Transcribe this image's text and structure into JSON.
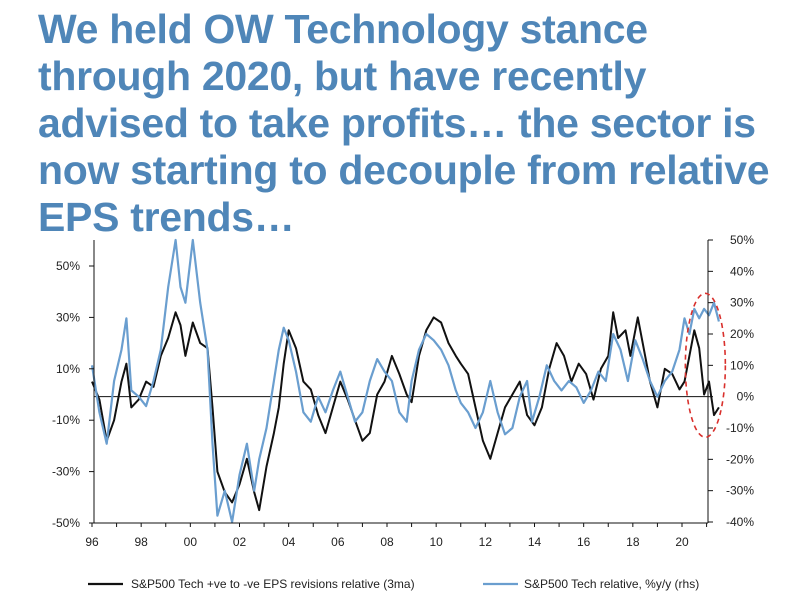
{
  "title": "We held OW Technology stance through 2020, but have recently advised to take profits… the sector is now starting to decouple from relative EPS trends…",
  "chart_data": {
    "type": "line",
    "x_ticks": [
      "96",
      "98",
      "00",
      "02",
      "04",
      "06",
      "08",
      "10",
      "12",
      "14",
      "16",
      "18",
      "20"
    ],
    "x_range": [
      1995.9,
      2021.6
    ],
    "y_left": {
      "range": [
        -50,
        60
      ],
      "ticks": [
        50,
        30,
        10,
        -10,
        -30,
        -50
      ],
      "tick_labels": [
        "50%",
        "30%",
        "10%",
        "-10%",
        "-30%",
        "-50%"
      ]
    },
    "y_right": {
      "range": [
        -40,
        50
      ],
      "ticks": [
        50,
        40,
        30,
        20,
        10,
        0,
        -10,
        -20,
        -30,
        -40
      ],
      "tick_labels": [
        "50%",
        "40%",
        "30%",
        "20%",
        "10%",
        "0%",
        "-10%",
        "-20%",
        "-30%",
        "-40%"
      ]
    },
    "zero_line": true,
    "series": [
      {
        "name": "S&P500 Tech +ve to -ve EPS revisions relative (3ma)",
        "axis": "left",
        "color": "#111111",
        "points": [
          [
            1996.0,
            5
          ],
          [
            1996.3,
            -2
          ],
          [
            1996.6,
            -18
          ],
          [
            1996.9,
            -10
          ],
          [
            1997.2,
            5
          ],
          [
            1997.4,
            12
          ],
          [
            1997.6,
            -5
          ],
          [
            1997.9,
            -2
          ],
          [
            1998.2,
            5
          ],
          [
            1998.5,
            3
          ],
          [
            1998.8,
            15
          ],
          [
            1999.1,
            22
          ],
          [
            1999.4,
            32
          ],
          [
            1999.6,
            27
          ],
          [
            1999.8,
            15
          ],
          [
            2000.1,
            28
          ],
          [
            2000.4,
            20
          ],
          [
            2000.7,
            18
          ],
          [
            2000.9,
            -5
          ],
          [
            2001.1,
            -30
          ],
          [
            2001.4,
            -38
          ],
          [
            2001.7,
            -42
          ],
          [
            2002.0,
            -35
          ],
          [
            2002.3,
            -25
          ],
          [
            2002.6,
            -38
          ],
          [
            2002.8,
            -45
          ],
          [
            2003.1,
            -28
          ],
          [
            2003.4,
            -15
          ],
          [
            2003.6,
            -5
          ],
          [
            2003.8,
            12
          ],
          [
            2004.0,
            25
          ],
          [
            2004.3,
            18
          ],
          [
            2004.6,
            5
          ],
          [
            2004.9,
            2
          ],
          [
            2005.2,
            -8
          ],
          [
            2005.5,
            -15
          ],
          [
            2005.8,
            -5
          ],
          [
            2006.1,
            5
          ],
          [
            2006.4,
            -2
          ],
          [
            2006.7,
            -10
          ],
          [
            2007.0,
            -18
          ],
          [
            2007.3,
            -15
          ],
          [
            2007.6,
            0
          ],
          [
            2007.9,
            5
          ],
          [
            2008.2,
            15
          ],
          [
            2008.5,
            8
          ],
          [
            2008.8,
            0
          ],
          [
            2009.0,
            -3
          ],
          [
            2009.3,
            15
          ],
          [
            2009.6,
            25
          ],
          [
            2009.9,
            30
          ],
          [
            2010.2,
            28
          ],
          [
            2010.5,
            20
          ],
          [
            2010.8,
            15
          ],
          [
            2011.0,
            12
          ],
          [
            2011.3,
            8
          ],
          [
            2011.6,
            -5
          ],
          [
            2011.9,
            -18
          ],
          [
            2012.2,
            -25
          ],
          [
            2012.5,
            -15
          ],
          [
            2012.8,
            -5
          ],
          [
            2013.1,
            0
          ],
          [
            2013.4,
            5
          ],
          [
            2013.7,
            -8
          ],
          [
            2014.0,
            -12
          ],
          [
            2014.3,
            -5
          ],
          [
            2014.6,
            10
          ],
          [
            2014.9,
            20
          ],
          [
            2015.2,
            15
          ],
          [
            2015.5,
            5
          ],
          [
            2015.8,
            12
          ],
          [
            2016.1,
            8
          ],
          [
            2016.4,
            -2
          ],
          [
            2016.7,
            10
          ],
          [
            2017.0,
            15
          ],
          [
            2017.2,
            32
          ],
          [
            2017.4,
            22
          ],
          [
            2017.7,
            25
          ],
          [
            2017.9,
            15
          ],
          [
            2018.2,
            30
          ],
          [
            2018.4,
            20
          ],
          [
            2018.7,
            5
          ],
          [
            2019.0,
            -5
          ],
          [
            2019.3,
            10
          ],
          [
            2019.6,
            8
          ],
          [
            2019.9,
            2
          ],
          [
            2020.1,
            5
          ],
          [
            2020.3,
            15
          ],
          [
            2020.5,
            25
          ],
          [
            2020.7,
            18
          ],
          [
            2020.9,
            0
          ],
          [
            2021.1,
            5
          ],
          [
            2021.3,
            -8
          ],
          [
            2021.5,
            -5
          ]
        ]
      },
      {
        "name": "S&P500 Tech relative, %y/y (rhs)",
        "axis": "right",
        "color": "#6a9ecf",
        "points": [
          [
            1996.0,
            10
          ],
          [
            1996.3,
            -5
          ],
          [
            1996.6,
            -15
          ],
          [
            1996.9,
            5
          ],
          [
            1997.2,
            15
          ],
          [
            1997.4,
            25
          ],
          [
            1997.6,
            2
          ],
          [
            1997.9,
            0
          ],
          [
            1998.2,
            -3
          ],
          [
            1998.5,
            5
          ],
          [
            1998.8,
            15
          ],
          [
            1999.1,
            35
          ],
          [
            1999.4,
            50
          ],
          [
            1999.6,
            35
          ],
          [
            1999.8,
            30
          ],
          [
            2000.1,
            52
          ],
          [
            2000.4,
            30
          ],
          [
            2000.7,
            15
          ],
          [
            2000.9,
            -15
          ],
          [
            2001.1,
            -38
          ],
          [
            2001.4,
            -30
          ],
          [
            2001.7,
            -40
          ],
          [
            2002.0,
            -25
          ],
          [
            2002.3,
            -15
          ],
          [
            2002.6,
            -30
          ],
          [
            2002.8,
            -20
          ],
          [
            2003.1,
            -10
          ],
          [
            2003.4,
            5
          ],
          [
            2003.6,
            15
          ],
          [
            2003.8,
            22
          ],
          [
            2004.0,
            18
          ],
          [
            2004.3,
            8
          ],
          [
            2004.6,
            -5
          ],
          [
            2004.9,
            -8
          ],
          [
            2005.2,
            0
          ],
          [
            2005.5,
            -5
          ],
          [
            2005.8,
            2
          ],
          [
            2006.1,
            8
          ],
          [
            2006.4,
            0
          ],
          [
            2006.7,
            -8
          ],
          [
            2007.0,
            -5
          ],
          [
            2007.3,
            5
          ],
          [
            2007.6,
            12
          ],
          [
            2007.9,
            8
          ],
          [
            2008.2,
            5
          ],
          [
            2008.5,
            -5
          ],
          [
            2008.8,
            -8
          ],
          [
            2009.0,
            5
          ],
          [
            2009.3,
            15
          ],
          [
            2009.6,
            20
          ],
          [
            2009.9,
            18
          ],
          [
            2010.2,
            15
          ],
          [
            2010.5,
            10
          ],
          [
            2010.8,
            2
          ],
          [
            2011.0,
            -2
          ],
          [
            2011.3,
            -5
          ],
          [
            2011.6,
            -10
          ],
          [
            2011.9,
            -5
          ],
          [
            2012.2,
            5
          ],
          [
            2012.5,
            -5
          ],
          [
            2012.8,
            -12
          ],
          [
            2013.1,
            -10
          ],
          [
            2013.4,
            0
          ],
          [
            2013.7,
            5
          ],
          [
            2013.9,
            -8
          ],
          [
            2014.2,
            0
          ],
          [
            2014.5,
            10
          ],
          [
            2014.8,
            5
          ],
          [
            2015.1,
            2
          ],
          [
            2015.4,
            5
          ],
          [
            2015.7,
            3
          ],
          [
            2016.0,
            -2
          ],
          [
            2016.3,
            2
          ],
          [
            2016.6,
            8
          ],
          [
            2016.9,
            5
          ],
          [
            2017.2,
            20
          ],
          [
            2017.5,
            15
          ],
          [
            2017.8,
            5
          ],
          [
            2018.1,
            18
          ],
          [
            2018.4,
            12
          ],
          [
            2018.7,
            5
          ],
          [
            2019.0,
            0
          ],
          [
            2019.3,
            5
          ],
          [
            2019.6,
            8
          ],
          [
            2019.9,
            15
          ],
          [
            2020.1,
            25
          ],
          [
            2020.3,
            20
          ],
          [
            2020.5,
            28
          ],
          [
            2020.7,
            25
          ],
          [
            2020.9,
            28
          ],
          [
            2021.1,
            26
          ],
          [
            2021.3,
            30
          ],
          [
            2021.5,
            24
          ]
        ]
      }
    ],
    "annotation": {
      "type": "dashed-ellipse",
      "color": "#d9302c",
      "center": [
        2020.95,
        10
      ],
      "axis": "right"
    },
    "legend_position": "bottom"
  }
}
